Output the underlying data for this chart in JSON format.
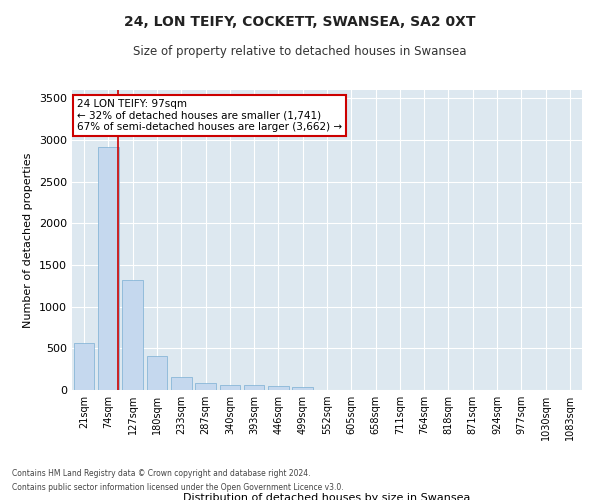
{
  "title_line1": "24, LON TEIFY, COCKETT, SWANSEA, SA2 0XT",
  "title_line2": "Size of property relative to detached houses in Swansea",
  "xlabel": "Distribution of detached houses by size in Swansea",
  "ylabel": "Number of detached properties",
  "bar_color": "#c5d8ee",
  "bar_edge_color": "#7aafd4",
  "background_color": "#dde8f0",
  "grid_color": "#ffffff",
  "categories": [
    "21sqm",
    "74sqm",
    "127sqm",
    "180sqm",
    "233sqm",
    "287sqm",
    "340sqm",
    "393sqm",
    "446sqm",
    "499sqm",
    "552sqm",
    "605sqm",
    "658sqm",
    "711sqm",
    "764sqm",
    "818sqm",
    "871sqm",
    "924sqm",
    "977sqm",
    "1030sqm",
    "1083sqm"
  ],
  "values": [
    570,
    2920,
    1320,
    410,
    160,
    80,
    60,
    55,
    45,
    40,
    0,
    0,
    0,
    0,
    0,
    0,
    0,
    0,
    0,
    0,
    0
  ],
  "ylim": [
    0,
    3600
  ],
  "yticks": [
    0,
    500,
    1000,
    1500,
    2000,
    2500,
    3000,
    3500
  ],
  "annotation_line1": "24 LON TEIFY: 97sqm",
  "annotation_line2": "← 32% of detached houses are smaller (1,741)",
  "annotation_line3": "67% of semi-detached houses are larger (3,662) →",
  "annotation_box_color": "#ffffff",
  "annotation_box_edge_color": "#cc0000",
  "vline_color": "#cc0000",
  "vline_x": 1.4,
  "footnote1": "Contains HM Land Registry data © Crown copyright and database right 2024.",
  "footnote2": "Contains public sector information licensed under the Open Government Licence v3.0."
}
